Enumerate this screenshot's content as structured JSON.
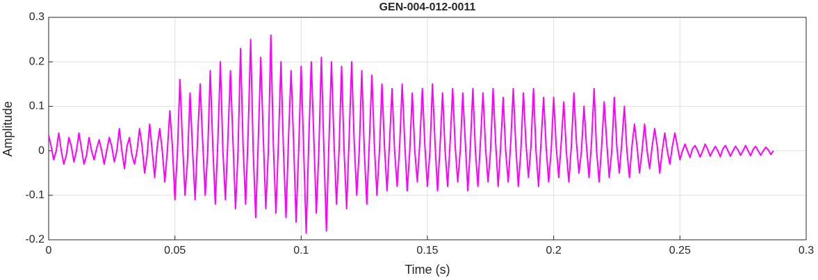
{
  "chart_data": {
    "type": "line",
    "title": "GEN-004-012-0011",
    "x_label": "Time (s)",
    "y_label": "Amplitude",
    "color": "#ff00ff",
    "grid": true,
    "xlim": [
      0,
      0.3
    ],
    "ylim": [
      -0.2,
      0.3
    ],
    "xticks": [
      0,
      0.05,
      0.1,
      0.15,
      0.2,
      0.25,
      0.3
    ],
    "yticks": [
      -0.2,
      -0.1,
      0,
      0.1,
      0.2,
      0.3
    ],
    "x": [
      0,
      0.001,
      0.002,
      0.003,
      0.004,
      0.005,
      0.006,
      0.007,
      0.008,
      0.009,
      0.01,
      0.011,
      0.012,
      0.013,
      0.014,
      0.015,
      0.016,
      0.017,
      0.018,
      0.019,
      0.02,
      0.021,
      0.022,
      0.023,
      0.024,
      0.025,
      0.026,
      0.027,
      0.028,
      0.029,
      0.03,
      0.031,
      0.032,
      0.033,
      0.034,
      0.035,
      0.036,
      0.037,
      0.038,
      0.039,
      0.04,
      0.041,
      0.042,
      0.043,
      0.044,
      0.045,
      0.046,
      0.047,
      0.048,
      0.049,
      0.05,
      0.051,
      0.052,
      0.053,
      0.054,
      0.055,
      0.056,
      0.057,
      0.058,
      0.059,
      0.06,
      0.061,
      0.062,
      0.063,
      0.064,
      0.065,
      0.066,
      0.067,
      0.068,
      0.069,
      0.07,
      0.071,
      0.072,
      0.073,
      0.074,
      0.075,
      0.076,
      0.077,
      0.078,
      0.079,
      0.08,
      0.081,
      0.082,
      0.083,
      0.084,
      0.085,
      0.086,
      0.087,
      0.088,
      0.089,
      0.09,
      0.091,
      0.092,
      0.093,
      0.094,
      0.095,
      0.096,
      0.097,
      0.098,
      0.099,
      0.1,
      0.101,
      0.102,
      0.103,
      0.104,
      0.105,
      0.106,
      0.107,
      0.108,
      0.109,
      0.11,
      0.111,
      0.112,
      0.113,
      0.114,
      0.115,
      0.116,
      0.117,
      0.118,
      0.119,
      0.12,
      0.121,
      0.122,
      0.123,
      0.124,
      0.125,
      0.126,
      0.127,
      0.128,
      0.129,
      0.13,
      0.131,
      0.132,
      0.133,
      0.134,
      0.135,
      0.136,
      0.137,
      0.138,
      0.139,
      0.14,
      0.141,
      0.142,
      0.143,
      0.144,
      0.145,
      0.146,
      0.147,
      0.148,
      0.149,
      0.15,
      0.151,
      0.152,
      0.153,
      0.154,
      0.155,
      0.156,
      0.157,
      0.158,
      0.159,
      0.16,
      0.161,
      0.162,
      0.163,
      0.164,
      0.165,
      0.166,
      0.167,
      0.168,
      0.169,
      0.17,
      0.171,
      0.172,
      0.173,
      0.174,
      0.175,
      0.176,
      0.177,
      0.178,
      0.179,
      0.18,
      0.181,
      0.182,
      0.183,
      0.184,
      0.185,
      0.186,
      0.187,
      0.188,
      0.189,
      0.19,
      0.191,
      0.192,
      0.193,
      0.194,
      0.195,
      0.196,
      0.197,
      0.198,
      0.199,
      0.2,
      0.201,
      0.202,
      0.203,
      0.204,
      0.205,
      0.206,
      0.207,
      0.208,
      0.209,
      0.21,
      0.211,
      0.212,
      0.213,
      0.214,
      0.215,
      0.216,
      0.217,
      0.218,
      0.219,
      0.22,
      0.221,
      0.222,
      0.223,
      0.224,
      0.225,
      0.226,
      0.227,
      0.228,
      0.229,
      0.23,
      0.231,
      0.232,
      0.233,
      0.234,
      0.235,
      0.236,
      0.237,
      0.238,
      0.239,
      0.24,
      0.241,
      0.242,
      0.243,
      0.244,
      0.245,
      0.246,
      0.247,
      0.248,
      0.249,
      0.25,
      0.251,
      0.252,
      0.253,
      0.254,
      0.255,
      0.256,
      0.257,
      0.258,
      0.259,
      0.26,
      0.261,
      0.262,
      0.263,
      0.264,
      0.265,
      0.266,
      0.267,
      0.268,
      0.269,
      0.27,
      0.271,
      0.272,
      0.273,
      0.274,
      0.275,
      0.276,
      0.277,
      0.278,
      0.279,
      0.28,
      0.281,
      0.282,
      0.283,
      0.284,
      0.285,
      0.286,
      0.287
    ],
    "values": [
      0.035,
      0.01,
      -0.02,
      0,
      0.04,
      0,
      -0.03,
      -0.01,
      0.03,
      0.01,
      -0.025,
      0,
      0.04,
      0.005,
      -0.03,
      -0.01,
      0.03,
      0,
      -0.02,
      0.005,
      0.025,
      0,
      -0.03,
      0,
      0.03,
      0.01,
      -0.025,
      0,
      0.05,
      0,
      -0.04,
      0.01,
      0.03,
      -0.01,
      -0.03,
      0,
      0.05,
      0.01,
      -0.05,
      -0.01,
      0.06,
      0,
      -0.06,
      0.01,
      0.05,
      0,
      -0.07,
      0,
      0.09,
      0.01,
      -0.11,
      0,
      0.16,
      0.02,
      -0.1,
      -0.02,
      0.13,
      0,
      -0.11,
      0.03,
      0.15,
      0.02,
      -0.1,
      0,
      0.18,
      0.01,
      -0.12,
      0.02,
      0.2,
      0,
      -0.11,
      0.03,
      0.18,
      0.02,
      -0.13,
      0,
      0.23,
      0.01,
      -0.12,
      0.04,
      0.25,
      0,
      -0.15,
      0.02,
      0.21,
      0.03,
      -0.13,
      0,
      0.26,
      0.01,
      -0.14,
      0.02,
      0.2,
      0,
      -0.15,
      0.03,
      0.18,
      0.02,
      -0.16,
      0,
      0.19,
      0,
      -0.185,
      0.02,
      0.2,
      0.03,
      -0.14,
      0,
      0.21,
      0,
      -0.18,
      0.02,
      0.2,
      0.02,
      -0.12,
      0,
      0.19,
      0,
      -0.13,
      0.03,
      0.2,
      0.02,
      -0.1,
      0,
      0.18,
      0,
      -0.12,
      0.02,
      0.17,
      0.01,
      -0.1,
      0,
      0.15,
      0.01,
      -0.09,
      0.02,
      0.14,
      0,
      -0.08,
      0.01,
      0.15,
      0.02,
      -0.09,
      0,
      0.13,
      0,
      -0.07,
      0.02,
      0.14,
      0.01,
      -0.08,
      0,
      0.15,
      0.02,
      -0.09,
      0.01,
      0.13,
      0,
      -0.08,
      0.02,
      0.14,
      0.01,
      -0.07,
      0,
      0.13,
      0.02,
      -0.09,
      0.01,
      0.14,
      0,
      -0.08,
      0.02,
      0.13,
      0.01,
      -0.07,
      0,
      0.14,
      0.02,
      -0.08,
      0.01,
      0.12,
      0,
      -0.07,
      0.02,
      0.14,
      0.01,
      -0.08,
      0,
      0.13,
      0.02,
      -0.06,
      0.01,
      0.14,
      0,
      -0.08,
      0.02,
      0.12,
      0.01,
      -0.07,
      0,
      0.12,
      0.01,
      -0.06,
      0.02,
      0.11,
      0,
      -0.07,
      0.01,
      0.13,
      0.02,
      -0.05,
      0,
      0.1,
      0.01,
      -0.06,
      0.02,
      0.14,
      0,
      -0.07,
      0.01,
      0.11,
      0.02,
      -0.06,
      0,
      0.12,
      0.01,
      -0.05,
      0.02,
      0.1,
      0,
      -0.06,
      0.01,
      0.06,
      0.01,
      -0.05,
      0,
      0.06,
      0,
      -0.04,
      0.01,
      0.05,
      0.01,
      -0.05,
      0,
      0.04,
      0,
      -0.03,
      0.01,
      0.04,
      0.01,
      -0.02,
      0,
      0.015,
      0,
      -0.015,
      0.005,
      0.012,
      0,
      -0.014,
      0,
      0.015,
      0.003,
      -0.012,
      0,
      0.01,
      0,
      -0.013,
      0.004,
      0.012,
      0,
      -0.012,
      0,
      0.01,
      0.002,
      -0.01,
      0,
      0.012,
      0,
      -0.011,
      0.003,
      0.01,
      0,
      -0.01,
      0,
      0.008,
      0.002,
      -0.008,
      0
    ]
  }
}
